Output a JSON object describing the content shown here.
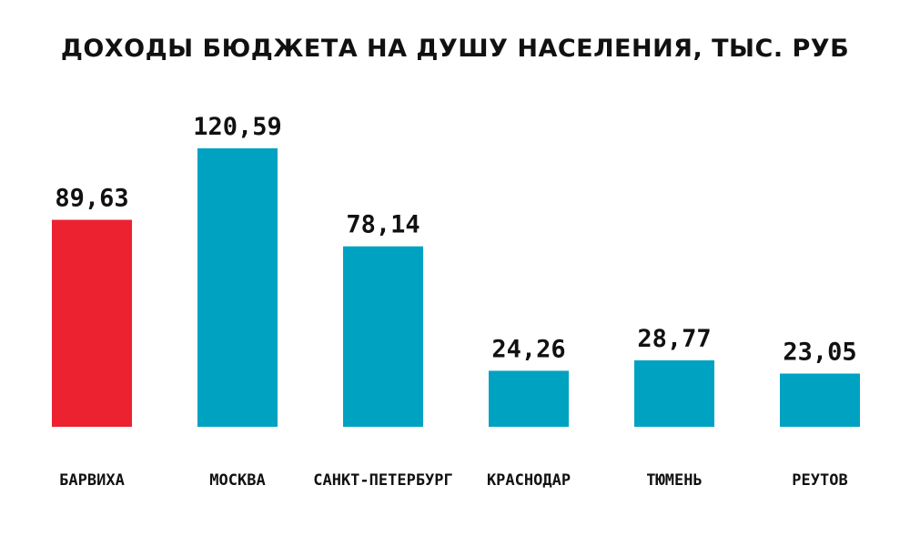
{
  "chart_data": {
    "type": "bar",
    "title": "ДОХОДЫ БЮДЖЕТА НА ДУШУ НАСЕЛЕНИЯ, ТЫС. РУБ",
    "categories": [
      "БАРВИХА",
      "МОСКВА",
      "САНКТ-ПЕТЕРБУРГ",
      "КРАСНОДАР",
      "ТЮМЕНЬ",
      "РЕУТОВ"
    ],
    "values": [
      89.63,
      120.59,
      78.14,
      24.26,
      28.77,
      23.05
    ],
    "value_labels": [
      "89,63",
      "120,59",
      "78,14",
      "24,26",
      "28,77",
      "23,05"
    ],
    "bar_colors": [
      "#ec2230",
      "#00a2c2",
      "#00a2c2",
      "#00a2c2",
      "#00a2c2",
      "#00a2c2"
    ],
    "highlight_color": "#ec2230",
    "bar_color": "#00a2c2",
    "ylim": [
      0,
      120.59
    ],
    "grid": false,
    "legend": "none"
  }
}
